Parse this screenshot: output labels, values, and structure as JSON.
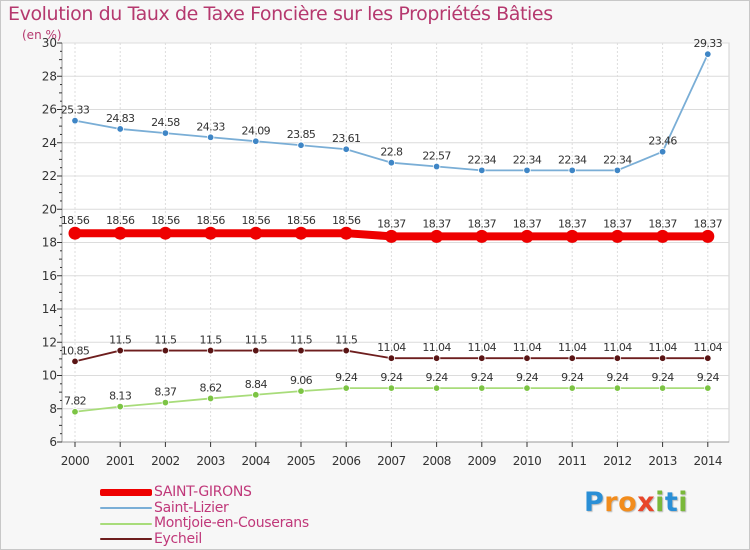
{
  "title": "Evolution du Taux de Taxe Foncière sur les Propriétés Bâties",
  "unit_label": "(en %)",
  "logo": {
    "letters": [
      "P",
      "r",
      "o",
      "x",
      "i",
      "t",
      "i"
    ],
    "colors": [
      "#2a8fd6",
      "#f28c1c",
      "#f28c1c",
      "#e8462a",
      "#7ab83a",
      "#2a8fd6",
      "#7ab83a"
    ]
  },
  "chart_data": {
    "type": "line",
    "title": "Evolution du Taux de Taxe Foncière sur les Propriétés Bâties",
    "ylabel": "(en %)",
    "xlabel": "",
    "ylim": [
      6,
      30
    ],
    "yticks": [
      6,
      8,
      10,
      12,
      14,
      16,
      18,
      20,
      22,
      24,
      26,
      28,
      30
    ],
    "grid": true,
    "x": [
      "2000",
      "2001",
      "2002",
      "2003",
      "2004",
      "2005",
      "2006",
      "2007",
      "2008",
      "2009",
      "2010",
      "2011",
      "2012",
      "2013",
      "2014"
    ],
    "series": [
      {
        "name": "SAINT-GIRONS",
        "color": "#ee0000",
        "marker_color": "#ee0000",
        "values": [
          18.56,
          18.56,
          18.56,
          18.56,
          18.56,
          18.56,
          18.56,
          18.37,
          18.37,
          18.37,
          18.37,
          18.37,
          18.37,
          18.37,
          18.37
        ],
        "labels": [
          "18.56",
          "18.56",
          "18.56",
          "18.56",
          "18.56",
          "18.56",
          "18.56",
          "18.37",
          "18.37",
          "18.37",
          "18.37",
          "18.37",
          "18.37",
          "18.37",
          "18.37"
        ]
      },
      {
        "name": "Saint-Lizier",
        "color": "#7aaed6",
        "marker_color": "#3f86c6",
        "values": [
          25.33,
          24.83,
          24.58,
          24.33,
          24.09,
          23.85,
          23.61,
          22.8,
          22.57,
          22.34,
          22.34,
          22.34,
          22.34,
          23.46,
          29.33
        ],
        "labels": [
          "25.33",
          "24.83",
          "24.58",
          "24.33",
          "24.09",
          "23.85",
          "23.61",
          "22.8",
          "22.57",
          "22.34",
          "22.34",
          "22.34",
          "22.34",
          "23.46",
          "29.33"
        ]
      },
      {
        "name": "Montjoie-en-Couserans",
        "color": "#a8dc7a",
        "marker_color": "#7cc444",
        "values": [
          7.82,
          8.13,
          8.37,
          8.62,
          8.84,
          9.06,
          9.24,
          9.24,
          9.24,
          9.24,
          9.24,
          9.24,
          9.24,
          9.24,
          9.24
        ],
        "labels": [
          "7.82",
          "8.13",
          "8.37",
          "8.62",
          "8.84",
          "9.06",
          "9.24",
          "9.24",
          "9.24",
          "9.24",
          "9.24",
          "9.24",
          "9.24",
          "9.24",
          "9.24"
        ]
      },
      {
        "name": "Eycheil",
        "color": "#6e1e1e",
        "marker_color": "#5a1515",
        "values": [
          10.85,
          11.5,
          11.5,
          11.5,
          11.5,
          11.5,
          11.5,
          11.04,
          11.04,
          11.04,
          11.04,
          11.04,
          11.04,
          11.04,
          11.04
        ],
        "labels": [
          "10.85",
          "11.5",
          "11.5",
          "11.5",
          "11.5",
          "11.5",
          "11.5",
          "11.04",
          "11.04",
          "11.04",
          "11.04",
          "11.04",
          "11.04",
          "11.04",
          "11.04"
        ]
      }
    ]
  }
}
